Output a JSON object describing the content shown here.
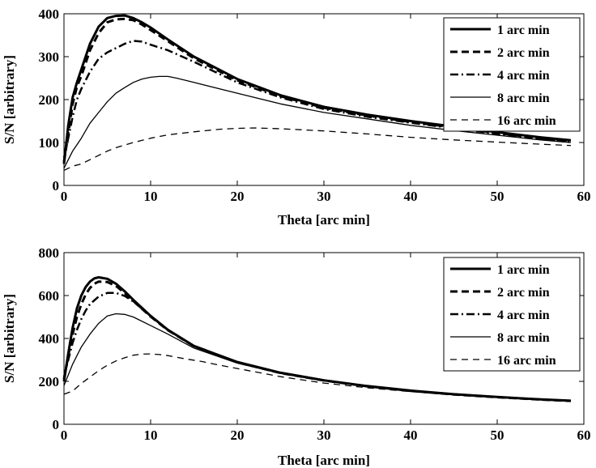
{
  "chart_data": [
    {
      "type": "line",
      "title": "",
      "xlabel": "Theta [arc min]",
      "ylabel": "S/N [arbitrary]",
      "xlim": [
        0,
        60
      ],
      "ylim": [
        0,
        400
      ],
      "xticks": [
        0,
        10,
        20,
        30,
        40,
        50,
        60
      ],
      "yticks": [
        0,
        100,
        200,
        300,
        400
      ],
      "grid": false,
      "legend_position": "top-right",
      "series": [
        {
          "name": "1 arc min",
          "style": "solid-thick",
          "x": [
            0,
            0.5,
            1,
            1.5,
            2,
            3,
            4,
            5,
            6,
            7,
            8,
            9,
            10,
            12,
            15,
            20,
            25,
            30,
            35,
            40,
            45,
            50,
            55,
            58.5
          ],
          "y": [
            50,
            140,
            205,
            240,
            270,
            330,
            370,
            390,
            395,
            396,
            390,
            380,
            368,
            340,
            300,
            248,
            210,
            183,
            165,
            150,
            137,
            124,
            112,
            105
          ]
        },
        {
          "name": "2 arc min",
          "style": "dashed-thick",
          "x": [
            0,
            0.5,
            1,
            1.5,
            2,
            3,
            4,
            5,
            6,
            7,
            8,
            9,
            10,
            12,
            15,
            20,
            25,
            30,
            35,
            40,
            45,
            50,
            55,
            58.5
          ],
          "y": [
            55,
            120,
            190,
            230,
            255,
            315,
            355,
            380,
            387,
            388,
            385,
            375,
            362,
            336,
            296,
            245,
            208,
            181,
            163,
            148,
            135,
            122,
            110,
            103
          ]
        },
        {
          "name": "4 arc min",
          "style": "dashdot-thick",
          "x": [
            0,
            0.5,
            1,
            1.5,
            2,
            3,
            4,
            5,
            6,
            7,
            8,
            9,
            10,
            12,
            15,
            20,
            25,
            30,
            35,
            40,
            45,
            50,
            55,
            58.5
          ],
          "y": [
            65,
            110,
            160,
            200,
            225,
            265,
            295,
            310,
            320,
            330,
            337,
            335,
            328,
            315,
            288,
            240,
            205,
            178,
            160,
            146,
            133,
            120,
            108,
            101
          ]
        },
        {
          "name": "8 arc min",
          "style": "solid-thin",
          "x": [
            0,
            1,
            2,
            3,
            4,
            5,
            6,
            7,
            8,
            9,
            10,
            11,
            12,
            13,
            15,
            20,
            25,
            30,
            35,
            40,
            45,
            50,
            55,
            58.5
          ],
          "y": [
            40,
            80,
            110,
            145,
            170,
            195,
            215,
            228,
            240,
            248,
            252,
            254,
            254,
            250,
            240,
            215,
            190,
            170,
            155,
            140,
            128,
            117,
            106,
            100
          ]
        },
        {
          "name": "16 arc min",
          "style": "dashed-thin",
          "x": [
            0,
            1,
            2,
            3,
            4,
            5,
            6,
            8,
            10,
            12,
            15,
            18,
            20,
            22,
            25,
            30,
            35,
            40,
            45,
            50,
            55,
            58.5
          ],
          "y": [
            35,
            45,
            50,
            60,
            70,
            80,
            88,
            100,
            110,
            118,
            125,
            131,
            133,
            134,
            132,
            127,
            120,
            112,
            106,
            101,
            96,
            93
          ]
        }
      ]
    },
    {
      "type": "line",
      "title": "",
      "xlabel": "Theta [arc min]",
      "ylabel": "S/N [arbitrary]",
      "xlim": [
        0,
        60
      ],
      "ylim": [
        0,
        800
      ],
      "xticks": [
        0,
        10,
        20,
        30,
        40,
        50,
        60
      ],
      "yticks": [
        0,
        200,
        400,
        600,
        800
      ],
      "grid": false,
      "legend_position": "top-right",
      "series": [
        {
          "name": "1 arc min",
          "style": "solid-thick",
          "x": [
            0,
            0.5,
            1,
            1.5,
            2,
            2.5,
            3,
            3.5,
            4,
            5,
            6,
            7,
            8,
            10,
            12,
            15,
            20,
            25,
            30,
            35,
            40,
            45,
            50,
            55,
            58.5
          ],
          "y": [
            200,
            330,
            450,
            540,
            600,
            640,
            665,
            680,
            685,
            678,
            655,
            620,
            580,
            505,
            440,
            365,
            290,
            240,
            205,
            178,
            157,
            140,
            127,
            116,
            110
          ]
        },
        {
          "name": "2 arc min",
          "style": "dashed-thick",
          "x": [
            0,
            0.5,
            1,
            1.5,
            2,
            2.5,
            3,
            3.5,
            4,
            5,
            6,
            7,
            8,
            10,
            12,
            15,
            20,
            25,
            30,
            35,
            40,
            45,
            50,
            55,
            58.5
          ],
          "y": [
            210,
            320,
            420,
            500,
            560,
            605,
            635,
            655,
            665,
            663,
            645,
            612,
            575,
            502,
            438,
            364,
            289,
            239,
            204,
            177,
            156,
            139,
            126,
            115,
            109
          ]
        },
        {
          "name": "4 arc min",
          "style": "dashdot-thick",
          "x": [
            0,
            0.5,
            1,
            1.5,
            2,
            2.5,
            3,
            4,
            5,
            6,
            7,
            8,
            10,
            12,
            15,
            20,
            25,
            30,
            35,
            40,
            45,
            50,
            55,
            58.5
          ],
          "y": [
            220,
            300,
            380,
            440,
            490,
            530,
            560,
            595,
            612,
            612,
            598,
            572,
            505,
            440,
            365,
            290,
            240,
            205,
            178,
            157,
            140,
            127,
            116,
            110
          ]
        },
        {
          "name": "8 arc min",
          "style": "solid-thin",
          "x": [
            0,
            1,
            2,
            3,
            4,
            5,
            6,
            7,
            8,
            10,
            12,
            15,
            20,
            25,
            30,
            35,
            40,
            45,
            50,
            55,
            58.5
          ],
          "y": [
            180,
            280,
            360,
            420,
            470,
            505,
            515,
            512,
            500,
            460,
            420,
            355,
            285,
            237,
            202,
            176,
            155,
            139,
            126,
            115,
            109
          ]
        },
        {
          "name": "16 arc min",
          "style": "dashed-thin",
          "x": [
            0,
            1,
            2,
            3,
            4,
            5,
            6,
            7,
            8,
            9,
            10,
            11,
            12,
            14,
            16,
            18,
            20,
            25,
            30,
            35,
            40,
            45,
            50,
            55,
            58.5
          ],
          "y": [
            140,
            155,
            190,
            220,
            250,
            275,
            295,
            310,
            322,
            327,
            328,
            325,
            320,
            305,
            292,
            275,
            260,
            222,
            192,
            170,
            152,
            137,
            125,
            114,
            108
          ]
        }
      ]
    }
  ]
}
